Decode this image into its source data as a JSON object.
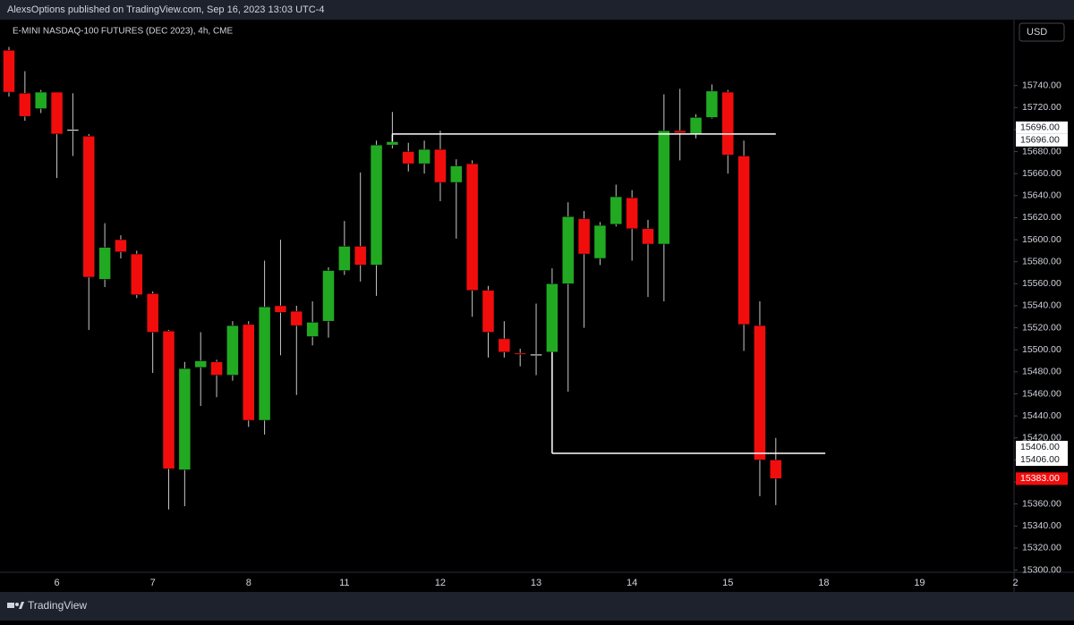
{
  "header": {
    "publisher": "AlexsOptions published on TradingView.com, Sep 16, 2023 13:03 UTC-4",
    "currency": "USD",
    "footer": "TradingView"
  },
  "chart_data": {
    "type": "candlestick",
    "title": "E-MINI NASDAQ-100 FUTURES (DEC 2023), 4h, CME",
    "up_color": "#22a922",
    "down_color": "#f20d0d",
    "doji_color": "#ffffff",
    "wick_color": "#c8c8c8",
    "open": [
      15772,
      15733,
      15719,
      15734,
      15700,
      15694,
      15564,
      15600,
      15587,
      15551,
      15517,
      15391,
      15484,
      15489,
      15477,
      15523,
      15436,
      15540,
      15535,
      15512,
      15526,
      15572,
      15594,
      15577,
      15686,
      15680,
      15669,
      15682,
      15652,
      15669,
      15554,
      15510,
      15497,
      15496,
      15498,
      15560,
      15619,
      15583,
      15614,
      15638,
      15610,
      15596,
      15699,
      15696,
      15711,
      15734,
      15676,
      15522,
      15400
    ],
    "high": [
      15775,
      15753,
      15736,
      15734,
      15733,
      15696,
      15615,
      15604,
      15590,
      15553,
      15518,
      15489,
      15516,
      15491,
      15526,
      15526,
      15581,
      15600,
      15540,
      15544,
      15575,
      15617,
      15661,
      15690,
      15716,
      15688,
      15690,
      15699,
      15673,
      15672,
      15558,
      15526,
      15501,
      15542,
      15574,
      15634,
      15626,
      15616,
      15650,
      15645,
      15618,
      15732,
      15737,
      15714,
      15741,
      15736,
      15690,
      15544,
      15420
    ],
    "low": [
      15730,
      15708,
      15715,
      15656,
      15676,
      15518,
      15557,
      15583,
      15547,
      15479,
      15355,
      15358,
      15449,
      15457,
      15472,
      15430,
      15423,
      15495,
      15459,
      15504,
      15511,
      15568,
      15562,
      15549,
      15683,
      15662,
      15660,
      15635,
      15601,
      15530,
      15493,
      15493,
      15485,
      15477,
      15406,
      15462,
      15520,
      15577,
      15612,
      15581,
      15548,
      15544,
      15672,
      15692,
      15710,
      15660,
      15499,
      15367,
      15359
    ],
    "close": [
      15734,
      15712,
      15734,
      15696,
      15700,
      15566,
      15593,
      15589,
      15550,
      15516,
      15392,
      15483,
      15490,
      15477,
      15522,
      15436,
      15539,
      15534,
      15522,
      15525,
      15572,
      15594,
      15577,
      15686,
      15689,
      15669,
      15682,
      15652,
      15667,
      15554,
      15516,
      15498,
      15496,
      15496,
      15560,
      15621,
      15587,
      15613,
      15639,
      15610,
      15596,
      15699,
      15697,
      15711,
      15735,
      15677,
      15523,
      15400,
      15383
    ],
    "xticks": [
      "6",
      "7",
      "8",
      "11",
      "12",
      "13",
      "14",
      "15",
      "18",
      "19",
      "2"
    ],
    "ylim": [
      15298,
      15799
    ],
    "yticks": [
      {
        "value": 15300,
        "label": "15300.00"
      },
      {
        "value": 15320,
        "label": "15320.00"
      },
      {
        "value": 15340,
        "label": "15340.00"
      },
      {
        "value": 15360,
        "label": "15360.00"
      },
      {
        "value": 15380,
        "label": "15380.00"
      },
      {
        "value": 15400,
        "label": "15400.00"
      },
      {
        "value": 15420,
        "label": "15420.00"
      },
      {
        "value": 15440,
        "label": "15440.00"
      },
      {
        "value": 15460,
        "label": "15460.00"
      },
      {
        "value": 15480,
        "label": "15480.00"
      },
      {
        "value": 15500,
        "label": "15500.00"
      },
      {
        "value": 15520,
        "label": "15520.00"
      },
      {
        "value": 15540,
        "label": "15540.00"
      },
      {
        "value": 15560,
        "label": "15560.00"
      },
      {
        "value": 15580,
        "label": "15580.00"
      },
      {
        "value": 15600,
        "label": "15600.00"
      },
      {
        "value": 15620,
        "label": "15620.00"
      },
      {
        "value": 15640,
        "label": "15640.00"
      },
      {
        "value": 15660,
        "label": "15660.00"
      },
      {
        "value": 15680,
        "label": "15680.00"
      },
      {
        "value": 15700,
        "label": "15700.00"
      },
      {
        "value": 15720,
        "label": "15720.00"
      },
      {
        "value": 15740,
        "label": "15740.00"
      }
    ],
    "levels": [
      {
        "value": 15696,
        "labels": [
          "15696.00",
          "15696.00"
        ]
      },
      {
        "value": 15406,
        "labels": [
          "15406.00",
          "15406.00"
        ]
      }
    ],
    "last_price": {
      "value": 15383,
      "label": "15383.00",
      "color": "#f20d0d"
    }
  }
}
